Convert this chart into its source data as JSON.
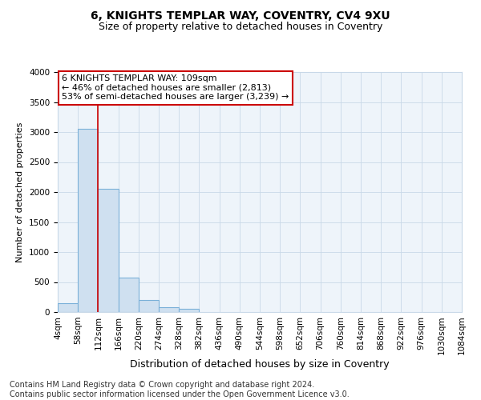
{
  "title1": "6, KNIGHTS TEMPLAR WAY, COVENTRY, CV4 9XU",
  "title2": "Size of property relative to detached houses in Coventry",
  "xlabel": "Distribution of detached houses by size in Coventry",
  "ylabel": "Number of detached properties",
  "footer1": "Contains HM Land Registry data © Crown copyright and database right 2024.",
  "footer2": "Contains public sector information licensed under the Open Government Licence v3.0.",
  "annotation_line1": "6 KNIGHTS TEMPLAR WAY: 109sqm",
  "annotation_line2": "← 46% of detached houses are smaller (2,813)",
  "annotation_line3": "53% of semi-detached houses are larger (3,239) →",
  "bin_edges": [
    4,
    58,
    112,
    166,
    220,
    274,
    328,
    382,
    436,
    490,
    544,
    598,
    652,
    706,
    760,
    814,
    868,
    922,
    976,
    1030,
    1084
  ],
  "bar_heights": [
    150,
    3060,
    2060,
    570,
    200,
    75,
    50,
    0,
    0,
    0,
    0,
    0,
    0,
    0,
    0,
    0,
    0,
    0,
    0,
    0
  ],
  "bar_facecolor": "#cfe0f0",
  "bar_edgecolor": "#7ab0d8",
  "property_line_x": 112,
  "property_line_color": "#cc0000",
  "annotation_box_color": "#cc0000",
  "ylim": [
    0,
    4000
  ],
  "xlim": [
    4,
    1084
  ],
  "grid_color": "#c8d8e8",
  "background_color": "#ffffff",
  "plot_bg_color": "#eef4fa",
  "title1_fontsize": 10,
  "title2_fontsize": 9,
  "xlabel_fontsize": 9,
  "ylabel_fontsize": 8,
  "tick_fontsize": 7.5,
  "footer_fontsize": 7,
  "annotation_fontsize": 8
}
